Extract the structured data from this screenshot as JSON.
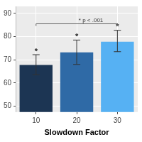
{
  "chart_data": {
    "type": "bar",
    "x_label": "Slowdown Factor",
    "categories": [
      "10",
      "20",
      "30"
    ],
    "values": [
      67.8,
      73.2,
      77.8
    ],
    "error_lower": [
      63.5,
      68.0,
      73.5
    ],
    "error_upper": [
      72.2,
      78.5,
      82.7
    ],
    "significance_marks": [
      "*",
      "*",
      "*"
    ],
    "brackets": [
      {
        "from": "10",
        "to": "30",
        "y": 85.5,
        "label": "* p < .001"
      }
    ],
    "colors": [
      "#1c3553",
      "#2f6aa6",
      "#56b1f3"
    ],
    "ylim": [
      47.5,
      93
    ],
    "yticks": [
      50,
      60,
      70,
      80,
      90
    ],
    "grid": true
  }
}
